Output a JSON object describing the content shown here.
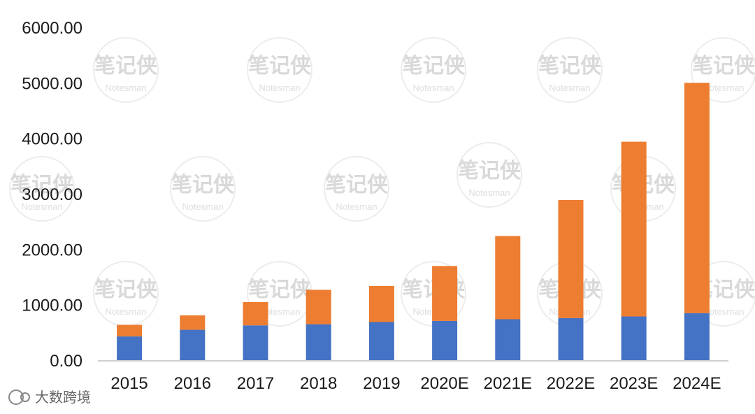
{
  "chart_data": {
    "type": "bar",
    "stacked": true,
    "title": "",
    "categories": [
      "2015",
      "2016",
      "2017",
      "2018",
      "2019",
      "2020E",
      "2021E",
      "2022E",
      "2023E",
      "2024E"
    ],
    "series": [
      {
        "color": "#4472C4",
        "values": [
          440,
          560,
          640,
          660,
          700,
          720,
          750,
          770,
          800,
          860
        ]
      },
      {
        "color": "#ED7D31",
        "values": [
          210,
          260,
          420,
          620,
          650,
          990,
          1500,
          2130,
          3150,
          4150
        ]
      }
    ],
    "y_ticks": [
      "0.00",
      "1000.00",
      "2000.00",
      "3000.00",
      "4000.00",
      "5000.00",
      "6000.00"
    ],
    "ylim": [
      0,
      6000
    ],
    "grid": false,
    "legend": "none"
  },
  "watermark": {
    "text": "笔记侠",
    "subtext": "Notesman"
  },
  "corner_logo": {
    "text": "大数跨境"
  }
}
